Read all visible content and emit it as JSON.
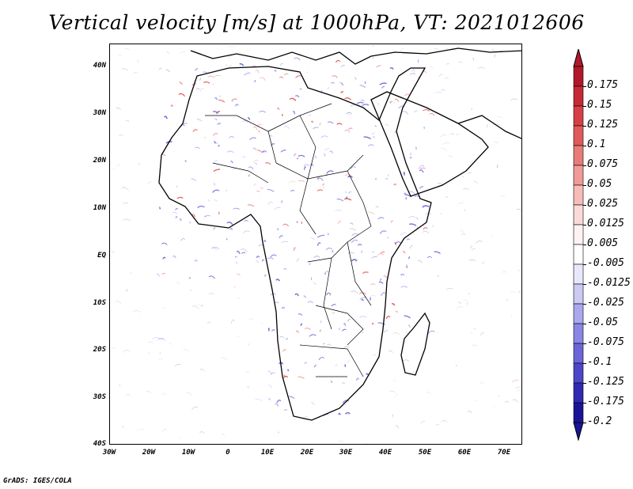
{
  "title": "Vertical velocity [m/s] at 1000hPa, VT: 2021012606",
  "credit": "GrADS: IGES/COLA",
  "map": {
    "lat_labels": [
      "40N",
      "30N",
      "20N",
      "10N",
      "EQ",
      "10S",
      "20S",
      "30S",
      "40S"
    ],
    "lon_labels": [
      "30W",
      "20W",
      "10W",
      "0",
      "10E",
      "20E",
      "30E",
      "40E",
      "50E",
      "60E",
      "70E"
    ],
    "region": "Africa"
  },
  "colorbar": {
    "labels": [
      "0.175",
      "0.15",
      "0.125",
      "0.1",
      "0.075",
      "0.05",
      "0.025",
      "0.0125",
      "0.005",
      "-0.005",
      "-0.0125",
      "-0.025",
      "-0.05",
      "-0.075",
      "-0.1",
      "-0.125",
      "-0.175",
      "-0.2"
    ],
    "colors": [
      "#b2182b",
      "#c62a35",
      "#d63f44",
      "#e05a5a",
      "#e87b78",
      "#f09b98",
      "#f6bcba",
      "#fadad8",
      "#fff3f2",
      "#ffffff",
      "#e8e8fb",
      "#cbcaf5",
      "#aaa8ee",
      "#8986e4",
      "#6a66d8",
      "#4c47c8",
      "#2f2ab2",
      "#1a1596"
    ]
  },
  "colors": {
    "upward": "#4444dd",
    "downward": "#dd4444",
    "coast": "#000000"
  }
}
